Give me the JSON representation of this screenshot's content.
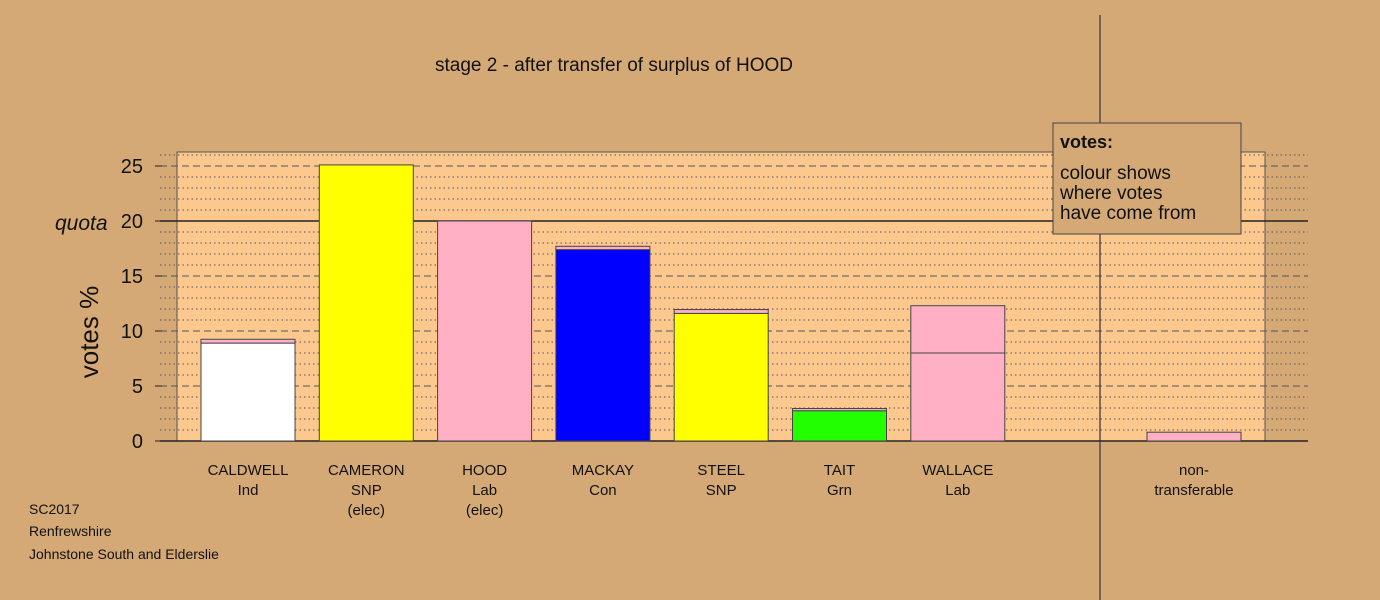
{
  "colors": {
    "background": "#d4a976",
    "plot_area": "#fcc88e",
    "Ind": "#ffffff",
    "SNP": "#ffff00",
    "Lab": "#ffb0c4",
    "Con": "#0000ff",
    "Grn": "#22ff00"
  },
  "chart_data": {
    "type": "bar",
    "stacked": true,
    "title": "stage 2 - after transfer of surplus of HOOD",
    "ylabel": "votes %",
    "ylim": [
      0,
      26
    ],
    "yticks": [
      "0",
      "5",
      "10",
      "15",
      "20",
      "25"
    ],
    "quota": {
      "value": 20,
      "label": "quota"
    },
    "grid": true,
    "candidates": [
      {
        "name": "CALDWELL",
        "party": "Ind",
        "status": "",
        "segments": [
          {
            "from": "Ind",
            "value": 8.9
          },
          {
            "from": "Lab",
            "value": 0.35
          }
        ]
      },
      {
        "name": "CAMERON",
        "party": "SNP",
        "status": "(elec)",
        "segments": [
          {
            "from": "SNP",
            "value": 25.1
          }
        ]
      },
      {
        "name": "HOOD",
        "party": "Lab",
        "status": "(elec)",
        "segments": [
          {
            "from": "Lab",
            "value": 20.0
          }
        ]
      },
      {
        "name": "MACKAY",
        "party": "Con",
        "status": "",
        "segments": [
          {
            "from": "Con",
            "value": 17.4
          },
          {
            "from": "Lab",
            "value": 0.3
          }
        ]
      },
      {
        "name": "STEEL",
        "party": "SNP",
        "status": "",
        "segments": [
          {
            "from": "SNP",
            "value": 11.6
          },
          {
            "from": "Lab",
            "value": 0.35
          }
        ]
      },
      {
        "name": "TAIT",
        "party": "Grn",
        "status": "",
        "segments": [
          {
            "from": "Grn",
            "value": 2.75
          },
          {
            "from": "Lab",
            "value": 0.2
          }
        ]
      },
      {
        "name": "WALLACE",
        "party": "Lab",
        "status": "",
        "segments": [
          {
            "from": "Lab",
            "value": 8.0
          },
          {
            "from": "Lab",
            "value": 4.3
          }
        ]
      }
    ],
    "nontransferable": {
      "label_line1": "non-",
      "label_line2": "transferable",
      "value": 0.8,
      "from": "Lab"
    },
    "legend": {
      "title": "votes:",
      "lines": [
        "colour shows",
        "where votes",
        "have come from"
      ],
      "placement": "top-right"
    }
  },
  "footer": {
    "election": "SC2017",
    "council": "Renfrewshire",
    "ward": "Johnstone South and Elderslie"
  }
}
